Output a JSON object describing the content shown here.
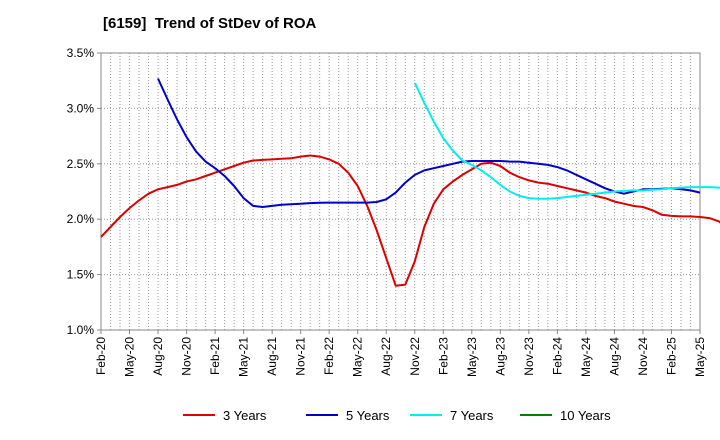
{
  "chart_data": {
    "type": "line",
    "title": "[6159]  Trend of StDev of ROA",
    "xlabel": "",
    "ylabel": "",
    "ylim": [
      1.0,
      3.5
    ],
    "yticks": [
      1.0,
      1.5,
      2.0,
      2.5,
      3.0,
      3.5
    ],
    "ytick_labels": [
      "1.0%",
      "1.5%",
      "2.0%",
      "2.5%",
      "3.0%",
      "3.5%"
    ],
    "xticks": [
      "Feb-20",
      "May-20",
      "Aug-20",
      "Nov-20",
      "Feb-21",
      "May-21",
      "Aug-21",
      "Nov-21",
      "Feb-22",
      "May-22",
      "Aug-22",
      "Nov-22",
      "Feb-23",
      "May-23",
      "Aug-23",
      "Nov-23",
      "Feb-24",
      "May-24",
      "Aug-24",
      "Nov-24",
      "Feb-25",
      "May-25"
    ],
    "grid": "dotted",
    "legend": "bottom",
    "series": [
      {
        "name": "3 Years",
        "color": "#dd0000",
        "start_month": 0,
        "values": [
          1.84,
          1.93,
          2.02,
          2.1,
          2.17,
          2.23,
          2.27,
          2.29,
          2.31,
          2.34,
          2.36,
          2.39,
          2.42,
          2.45,
          2.48,
          2.51,
          2.53,
          2.535,
          2.54,
          2.545,
          2.55,
          2.565,
          2.575,
          2.565,
          2.54,
          2.5,
          2.42,
          2.3,
          2.12,
          1.9,
          1.65,
          1.4,
          1.41,
          1.62,
          1.93,
          2.14,
          2.27,
          2.34,
          2.4,
          2.45,
          2.5,
          2.51,
          2.48,
          2.42,
          2.38,
          2.35,
          2.33,
          2.32,
          2.3,
          2.28,
          2.26,
          2.24,
          2.21,
          2.19,
          2.16,
          2.14,
          2.12,
          2.11,
          2.08,
          2.04,
          2.03,
          2.025,
          2.025,
          2.02,
          2.01,
          1.98,
          1.91
        ]
      },
      {
        "name": "5 Years",
        "color": "#0000cc",
        "start_month": 6,
        "values": [
          3.27,
          3.08,
          2.9,
          2.74,
          2.61,
          2.52,
          2.46,
          2.39,
          2.3,
          2.19,
          2.12,
          2.11,
          2.12,
          2.13,
          2.135,
          2.14,
          2.145,
          2.148,
          2.15,
          2.15,
          2.15,
          2.15,
          2.15,
          2.155,
          2.18,
          2.24,
          2.33,
          2.4,
          2.44,
          2.46,
          2.48,
          2.5,
          2.52,
          2.525,
          2.525,
          2.525,
          2.525,
          2.52,
          2.52,
          2.51,
          2.5,
          2.49,
          2.47,
          2.44,
          2.4,
          2.36,
          2.32,
          2.28,
          2.25,
          2.23,
          2.25,
          2.27,
          2.27,
          2.275,
          2.28,
          2.27,
          2.26,
          2.24
        ]
      },
      {
        "name": "7 Years",
        "color": "#00eeee",
        "start_month": 33,
        "values": [
          3.23,
          3.05,
          2.88,
          2.73,
          2.62,
          2.53,
          2.49,
          2.44,
          2.38,
          2.31,
          2.25,
          2.21,
          2.19,
          2.185,
          2.185,
          2.19,
          2.2,
          2.21,
          2.22,
          2.23,
          2.24,
          2.25,
          2.255,
          2.26,
          2.26,
          2.265,
          2.27,
          2.28,
          2.285,
          2.29,
          2.29,
          2.29,
          2.285,
          2.285
        ]
      },
      {
        "name": "10 Years",
        "color": "#008000",
        "start_month": 0,
        "values": []
      }
    ]
  }
}
